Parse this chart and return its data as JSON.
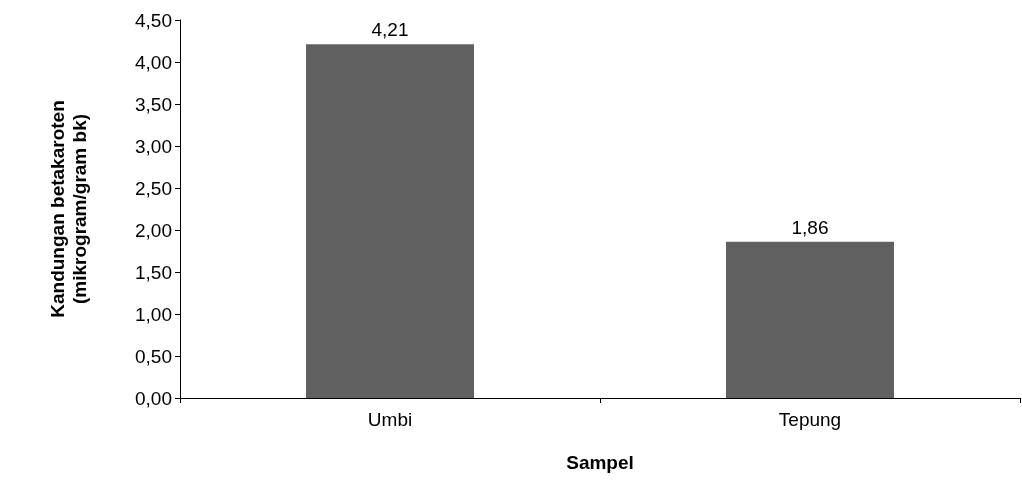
{
  "chart_data": {
    "type": "bar",
    "xlabel": "Sampel",
    "ylabel": "Kandungan betakaroten\n(mikrogram/gram bk)",
    "categories": [
      "Umbi",
      "Tepung"
    ],
    "values": [
      4.21,
      1.86
    ],
    "value_labels": [
      "4,21",
      "1,86"
    ],
    "color": "#606060",
    "ylim": [
      0,
      4.5
    ],
    "yticks": [
      {
        "value": 0,
        "label": "0,00"
      },
      {
        "value": 0.5,
        "label": "0,50"
      },
      {
        "value": 1,
        "label": "1,00"
      },
      {
        "value": 1.5,
        "label": "1,50"
      },
      {
        "value": 2,
        "label": "2,00"
      },
      {
        "value": 2.5,
        "label": "2,50"
      },
      {
        "value": 3,
        "label": "3,00"
      },
      {
        "value": 3.5,
        "label": "3,50"
      },
      {
        "value": 4,
        "label": "4,00"
      },
      {
        "value": 4.5,
        "label": "4,50"
      }
    ],
    "grid": false
  }
}
